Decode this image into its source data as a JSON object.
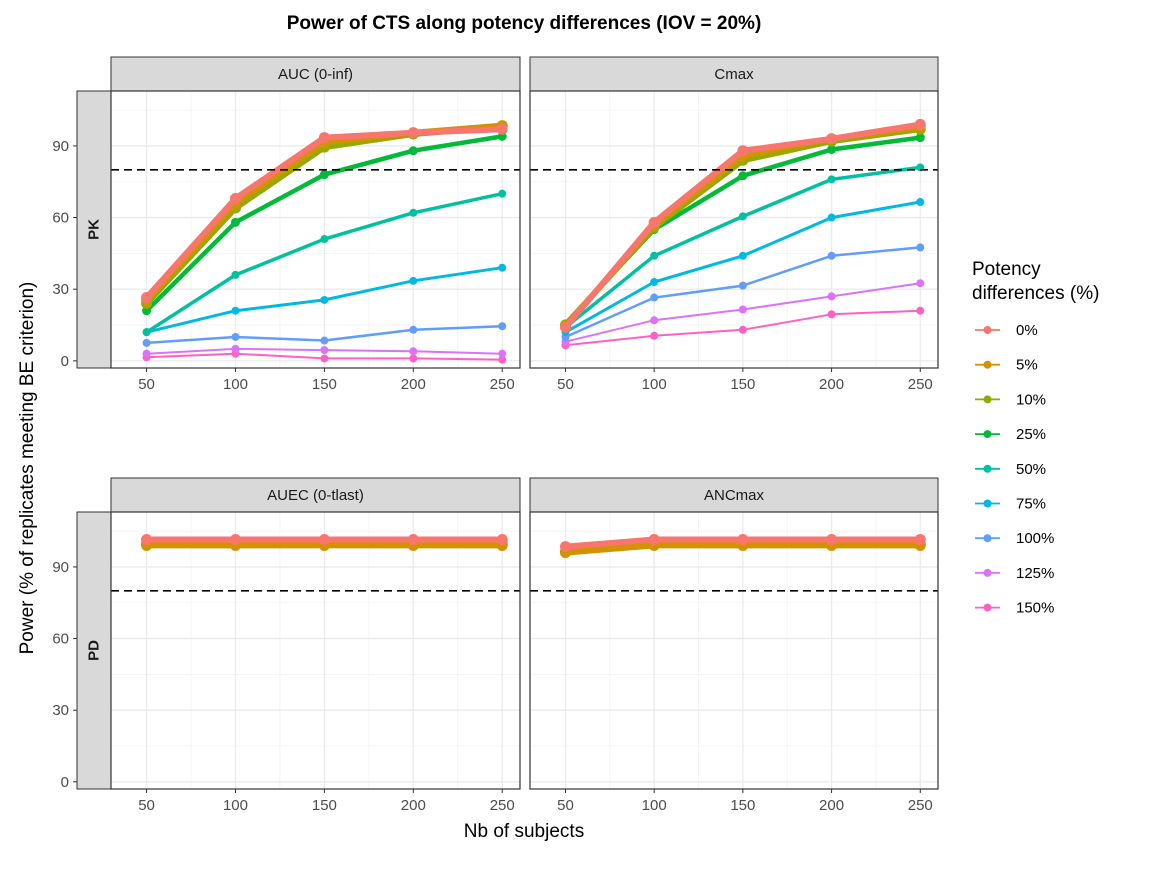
{
  "chart_data": {
    "type": "line",
    "title": "Power of CTS along potency differences (IOV = 20%)",
    "xlabel": "Nb of subjects",
    "ylabel": "Power (% of replicates meeting BE criterion)",
    "x": [
      50,
      100,
      150,
      200,
      250
    ],
    "xlim": [
      30,
      260
    ],
    "ylim": [
      -3,
      113
    ],
    "x_ticks": [
      "50",
      "100",
      "150",
      "200",
      "250"
    ],
    "y_ticks": [
      "0",
      "30",
      "60",
      "90"
    ],
    "reference_line": {
      "y": 80,
      "style": "dashed"
    },
    "legend": {
      "title_line1": "Potency",
      "title_line2": "differences (%)",
      "placement": "right"
    },
    "series_meta": [
      {
        "name": "0%",
        "color": "#F8766D"
      },
      {
        "name": "5%",
        "color": "#D39200"
      },
      {
        "name": "10%",
        "color": "#93AA00"
      },
      {
        "name": "25%",
        "color": "#00BA38"
      },
      {
        "name": "50%",
        "color": "#00C19F"
      },
      {
        "name": "75%",
        "color": "#00B9E3"
      },
      {
        "name": "100%",
        "color": "#619CFF"
      },
      {
        "name": "125%",
        "color": "#DB72FB"
      },
      {
        "name": "150%",
        "color": "#FF61C3"
      }
    ],
    "rows": [
      {
        "label": "PK"
      },
      {
        "label": "PD"
      }
    ],
    "panels": [
      {
        "title": "AUC (0-inf)",
        "row": 0,
        "col": 0,
        "series": [
          {
            "name": "0%",
            "values": [
              26.5,
              68,
              93.5,
              95.5,
              97
            ]
          },
          {
            "name": "5%",
            "values": [
              25.5,
              66,
              91.5,
              95.5,
              98.5
            ]
          },
          {
            "name": "10%",
            "values": [
              24,
              64,
              89.5,
              95,
              98
            ]
          },
          {
            "name": "25%",
            "values": [
              21,
              58,
              78,
              88,
              94
            ]
          },
          {
            "name": "50%",
            "values": [
              12,
              36,
              51,
              62,
              70
            ]
          },
          {
            "name": "75%",
            "values": [
              12,
              21,
              25.5,
              33.5,
              39
            ]
          },
          {
            "name": "100%",
            "values": [
              7.5,
              10,
              8.5,
              13,
              14.5
            ]
          },
          {
            "name": "125%",
            "values": [
              3,
              5,
              4.5,
              4,
              3
            ]
          },
          {
            "name": "150%",
            "values": [
              1.5,
              3,
              1,
              1,
              0.5
            ]
          }
        ]
      },
      {
        "title": "Cmax",
        "row": 0,
        "col": 1,
        "series": [
          {
            "name": "0%",
            "values": [
              14,
              58,
              88,
              93,
              99
            ]
          },
          {
            "name": "5%",
            "values": [
              14.5,
              57,
              86,
              93,
              98
            ]
          },
          {
            "name": "10%",
            "values": [
              15,
              56,
              84,
              92,
              97
            ]
          },
          {
            "name": "25%",
            "values": [
              15.5,
              55,
              77.5,
              88.5,
              93.5
            ]
          },
          {
            "name": "50%",
            "values": [
              14,
              44,
              60.5,
              76,
              81
            ]
          },
          {
            "name": "75%",
            "values": [
              12,
              33,
              44,
              60,
              66.5
            ]
          },
          {
            "name": "100%",
            "values": [
              10,
              26.5,
              31.5,
              44,
              47.5
            ]
          },
          {
            "name": "125%",
            "values": [
              8,
              17,
              21.5,
              27,
              32.5
            ]
          },
          {
            "name": "150%",
            "values": [
              6.5,
              10.5,
              13,
              19.5,
              21
            ]
          }
        ]
      },
      {
        "title": "AUEC (0-tlast)",
        "row": 1,
        "col": 0,
        "series": [
          {
            "name": "0%",
            "values": [
              101.5,
              101.5,
              101.5,
              101.5,
              101.5
            ]
          },
          {
            "name": "5%",
            "values": [
              99,
              99,
              99,
              99,
              99
            ]
          },
          {
            "name": "10%",
            "values": [
              100,
              100,
              100,
              100,
              100
            ]
          },
          {
            "name": "25%",
            "values": [
              100,
              100,
              100,
              100,
              100
            ]
          },
          {
            "name": "50%",
            "values": [
              100,
              100,
              100,
              100,
              100
            ]
          },
          {
            "name": "75%",
            "values": [
              100,
              100,
              100,
              100,
              100
            ]
          },
          {
            "name": "100%",
            "values": [
              100,
              100,
              100,
              100,
              100
            ]
          },
          {
            "name": "125%",
            "values": [
              100,
              100,
              100,
              100,
              100
            ]
          },
          {
            "name": "150%",
            "values": [
              100,
              100,
              100,
              100,
              100
            ]
          }
        ]
      },
      {
        "title": "ANCmax",
        "row": 1,
        "col": 1,
        "series": [
          {
            "name": "0%",
            "values": [
              98.5,
              101.5,
              101.5,
              101.5,
              101.5
            ]
          },
          {
            "name": "5%",
            "values": [
              96,
              99,
              99,
              99,
              99
            ]
          },
          {
            "name": "10%",
            "values": [
              96.5,
              99.5,
              99.5,
              99.5,
              99.5
            ]
          },
          {
            "name": "25%",
            "values": [
              97,
              100,
              100,
              100,
              100
            ]
          },
          {
            "name": "50%",
            "values": [
              97,
              100,
              100,
              100,
              100
            ]
          },
          {
            "name": "75%",
            "values": [
              97.5,
              100,
              100,
              100,
              100
            ]
          },
          {
            "name": "100%",
            "values": [
              97.5,
              100,
              100,
              100,
              100
            ]
          },
          {
            "name": "125%",
            "values": [
              97,
              100,
              100,
              100,
              100
            ]
          },
          {
            "name": "150%",
            "values": [
              97,
              100,
              100,
              100,
              100
            ]
          }
        ]
      }
    ]
  }
}
